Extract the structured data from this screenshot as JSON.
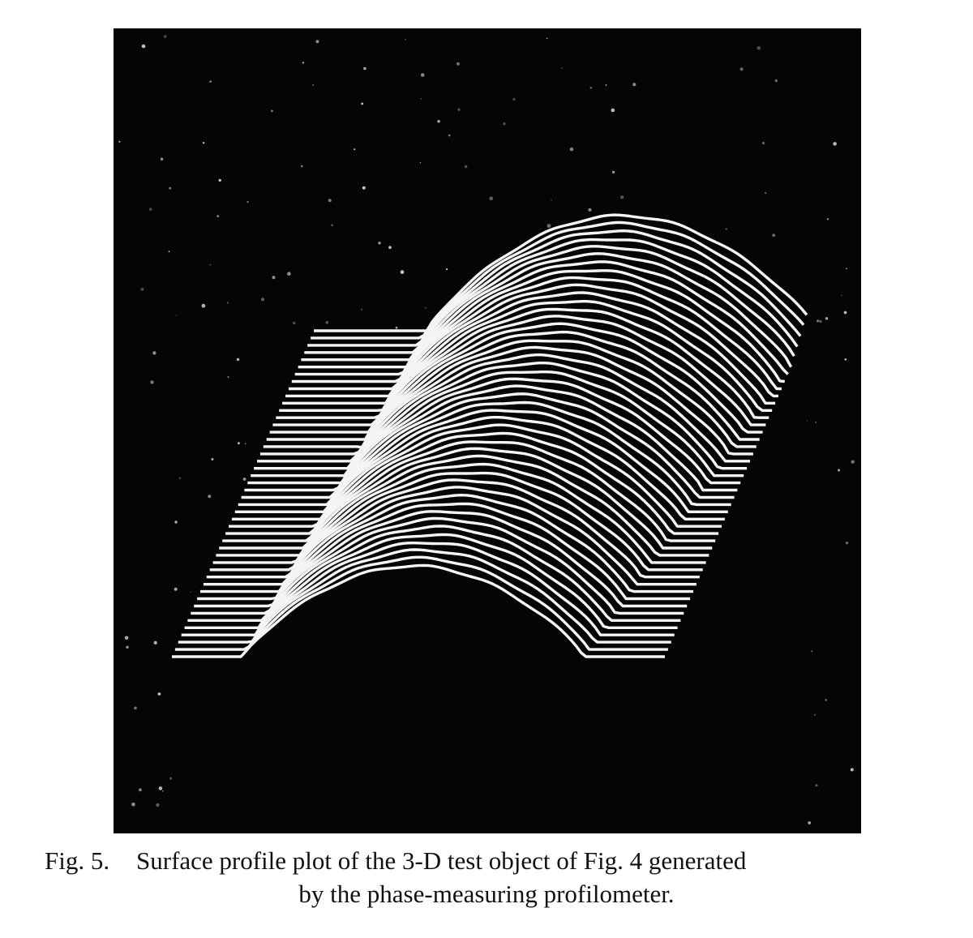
{
  "figure": {
    "label": "Fig. 5.",
    "caption": [
      "Surface profile plot of the 3-D test object of Fig. 4 generated",
      "by the phase-measuring profilometer."
    ]
  }
}
